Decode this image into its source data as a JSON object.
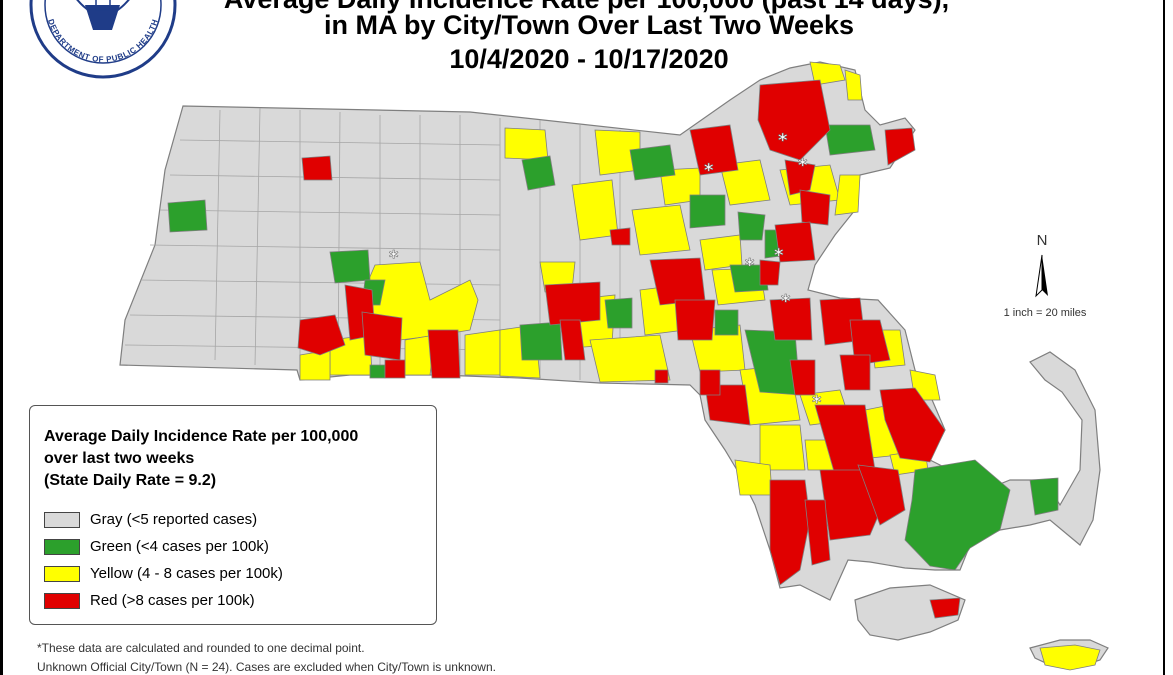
{
  "title": {
    "line1": "Average Daily Incidence Rate per 100,000 (past 14 days),",
    "line2": "in MA by City/Town Over Last Two Weeks",
    "line3": "10/4/2020 - 10/17/2020"
  },
  "seal": {
    "text": "DEPARTMENT OF PUBLIC HEALTH",
    "icon": "seal-icon"
  },
  "compass": {
    "label": "N",
    "icon": "north-arrow-icon"
  },
  "scale": {
    "label": "1 inch = 20 miles"
  },
  "legend": {
    "title_line1": "Average Daily Incidence Rate per 100,000",
    "title_line2": "over last two weeks",
    "title_line3": "(State Daily Rate = 9.2)",
    "items": [
      {
        "label": "Gray (<5 reported cases)",
        "color": "#d9d9d9"
      },
      {
        "label": "Green (<4 cases per 100k)",
        "color": "#2ca02c"
      },
      {
        "label": "Yellow (4 - 8 cases per 100k)",
        "color": "#ffff00"
      },
      {
        "label": "Red (>8 cases per 100k)",
        "color": "#e00000"
      }
    ]
  },
  "markers": {
    "symbol": "*"
  },
  "footnotes": {
    "line1": "*These data are calculated and rounded to one decimal point.",
    "line2": "Unknown Official City/Town (N = 24). Cases are excluded when City/Town is unknown."
  },
  "colors": {
    "gray": "#d9d9d9",
    "green": "#2ca02c",
    "yellow": "#ffff00",
    "red": "#e00000",
    "border": "#7f7f7f"
  }
}
